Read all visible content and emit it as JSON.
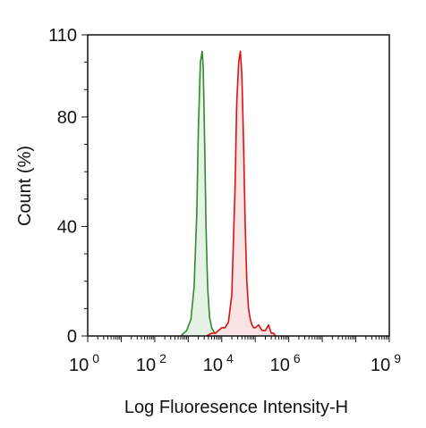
{
  "chart_data": {
    "type": "line",
    "xlabel": "Log Fluoresence Intensity-H",
    "ylabel": "Count  (%)",
    "x_scale": "log10",
    "xlim": [
      1,
      1000000000
    ],
    "ylim": [
      0,
      110
    ],
    "x_ticks": [
      {
        "base": "10",
        "exp": "0",
        "value": 1
      },
      {
        "base": "10",
        "exp": "2",
        "value": 100
      },
      {
        "base": "10",
        "exp": "4",
        "value": 10000
      },
      {
        "base": "10",
        "exp": "6",
        "value": 1000000
      },
      {
        "base": "10",
        "exp": "9",
        "value": 1000000000
      }
    ],
    "y_ticks": [
      {
        "label": "0",
        "value": 0
      },
      {
        "label": "40",
        "value": 40
      },
      {
        "label": "80",
        "value": 80
      },
      {
        "label": "110",
        "value": 110
      }
    ],
    "grid": false,
    "series": [
      {
        "color": "#2e8b2e",
        "fill": "#e6f2e6",
        "x": [
          600,
          900,
          1200,
          1500,
          1800,
          2000,
          2300,
          2600,
          2800,
          3100,
          3400,
          3800,
          4300,
          5000,
          6200,
          8000
        ],
        "y": [
          0,
          2,
          6,
          18,
          45,
          75,
          100,
          104,
          98,
          70,
          40,
          18,
          7,
          3,
          1,
          0
        ]
      },
      {
        "color": "#dd1111",
        "fill": "#fbe4e4",
        "x": [
          3500,
          5000,
          6500,
          8000,
          10000,
          12500,
          15800,
          20000,
          25000,
          28000,
          32000,
          36000,
          40000,
          45000,
          50000,
          56000,
          63000,
          71000,
          80000,
          90000,
          100000,
          125000,
          160000,
          200000,
          250000,
          300000,
          350000,
          400000
        ],
        "y": [
          0,
          1,
          1,
          2,
          3,
          3,
          5,
          15,
          55,
          85,
          100,
          104,
          95,
          70,
          40,
          20,
          10,
          6,
          4,
          3,
          3,
          4,
          2,
          2,
          4,
          1,
          1,
          0
        ]
      }
    ]
  }
}
